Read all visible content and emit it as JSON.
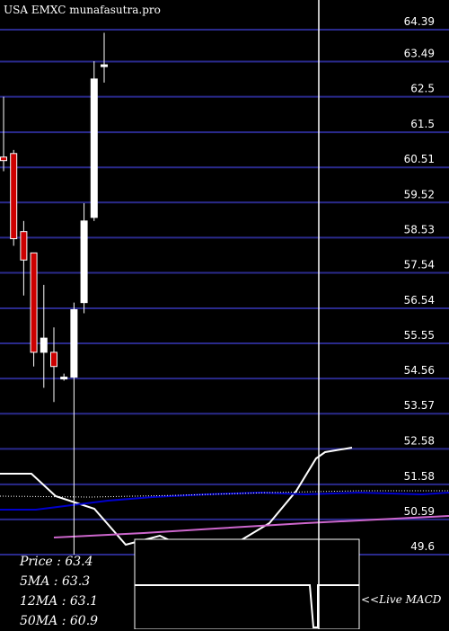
{
  "chart_data": {
    "type": "candlestick",
    "title": "USA EMXC munafasutra.pro",
    "y_ticks": [
      64.39,
      63.49,
      62.5,
      61.5,
      60.51,
      59.52,
      58.53,
      57.54,
      56.54,
      55.55,
      54.56,
      53.57,
      52.58,
      51.58,
      50.59,
      49.6
    ],
    "ylim": [
      49.6,
      64.39
    ],
    "grid": true,
    "colors": {
      "up": "#ffffff",
      "down": "#cc0000",
      "grid": "#2a2a8c",
      "ma_short": "#ffffff",
      "ma_mid": "#0000cc",
      "ma_long": "#cc66cc",
      "dotted": "#ffffff"
    },
    "candles": [
      {
        "open": 60.8,
        "high": 62.5,
        "low": 60.4,
        "close": 60.7
      },
      {
        "open": 60.9,
        "high": 61.0,
        "low": 58.3,
        "close": 58.5
      },
      {
        "open": 58.7,
        "high": 59.0,
        "low": 56.9,
        "close": 57.9
      },
      {
        "open": 58.1,
        "high": 58.1,
        "low": 54.9,
        "close": 55.3
      },
      {
        "open": 55.3,
        "high": 57.2,
        "low": 54.3,
        "close": 55.7
      },
      {
        "open": 55.3,
        "high": 56.0,
        "low": 53.9,
        "close": 54.9
      },
      {
        "open": 54.6,
        "high": 54.7,
        "low": 54.5,
        "close": 54.6
      },
      {
        "open": 54.6,
        "high": 56.7,
        "low": 49.6,
        "close": 56.5
      },
      {
        "open": 56.7,
        "high": 59.5,
        "low": 56.4,
        "close": 59.0
      },
      {
        "open": 59.1,
        "high": 63.5,
        "low": 59.0,
        "close": 63.0
      },
      {
        "open": 63.4,
        "high": 64.3,
        "low": 62.9,
        "close": 63.4
      }
    ],
    "stats": [
      {
        "label": "Price",
        "value": "63.4"
      },
      {
        "label": "5MA",
        "value": "63.3"
      },
      {
        "label": "12MA",
        "value": "63.1"
      },
      {
        "label": "50MA",
        "value": "60.9"
      }
    ],
    "macd_label": "<<Live MACD"
  }
}
